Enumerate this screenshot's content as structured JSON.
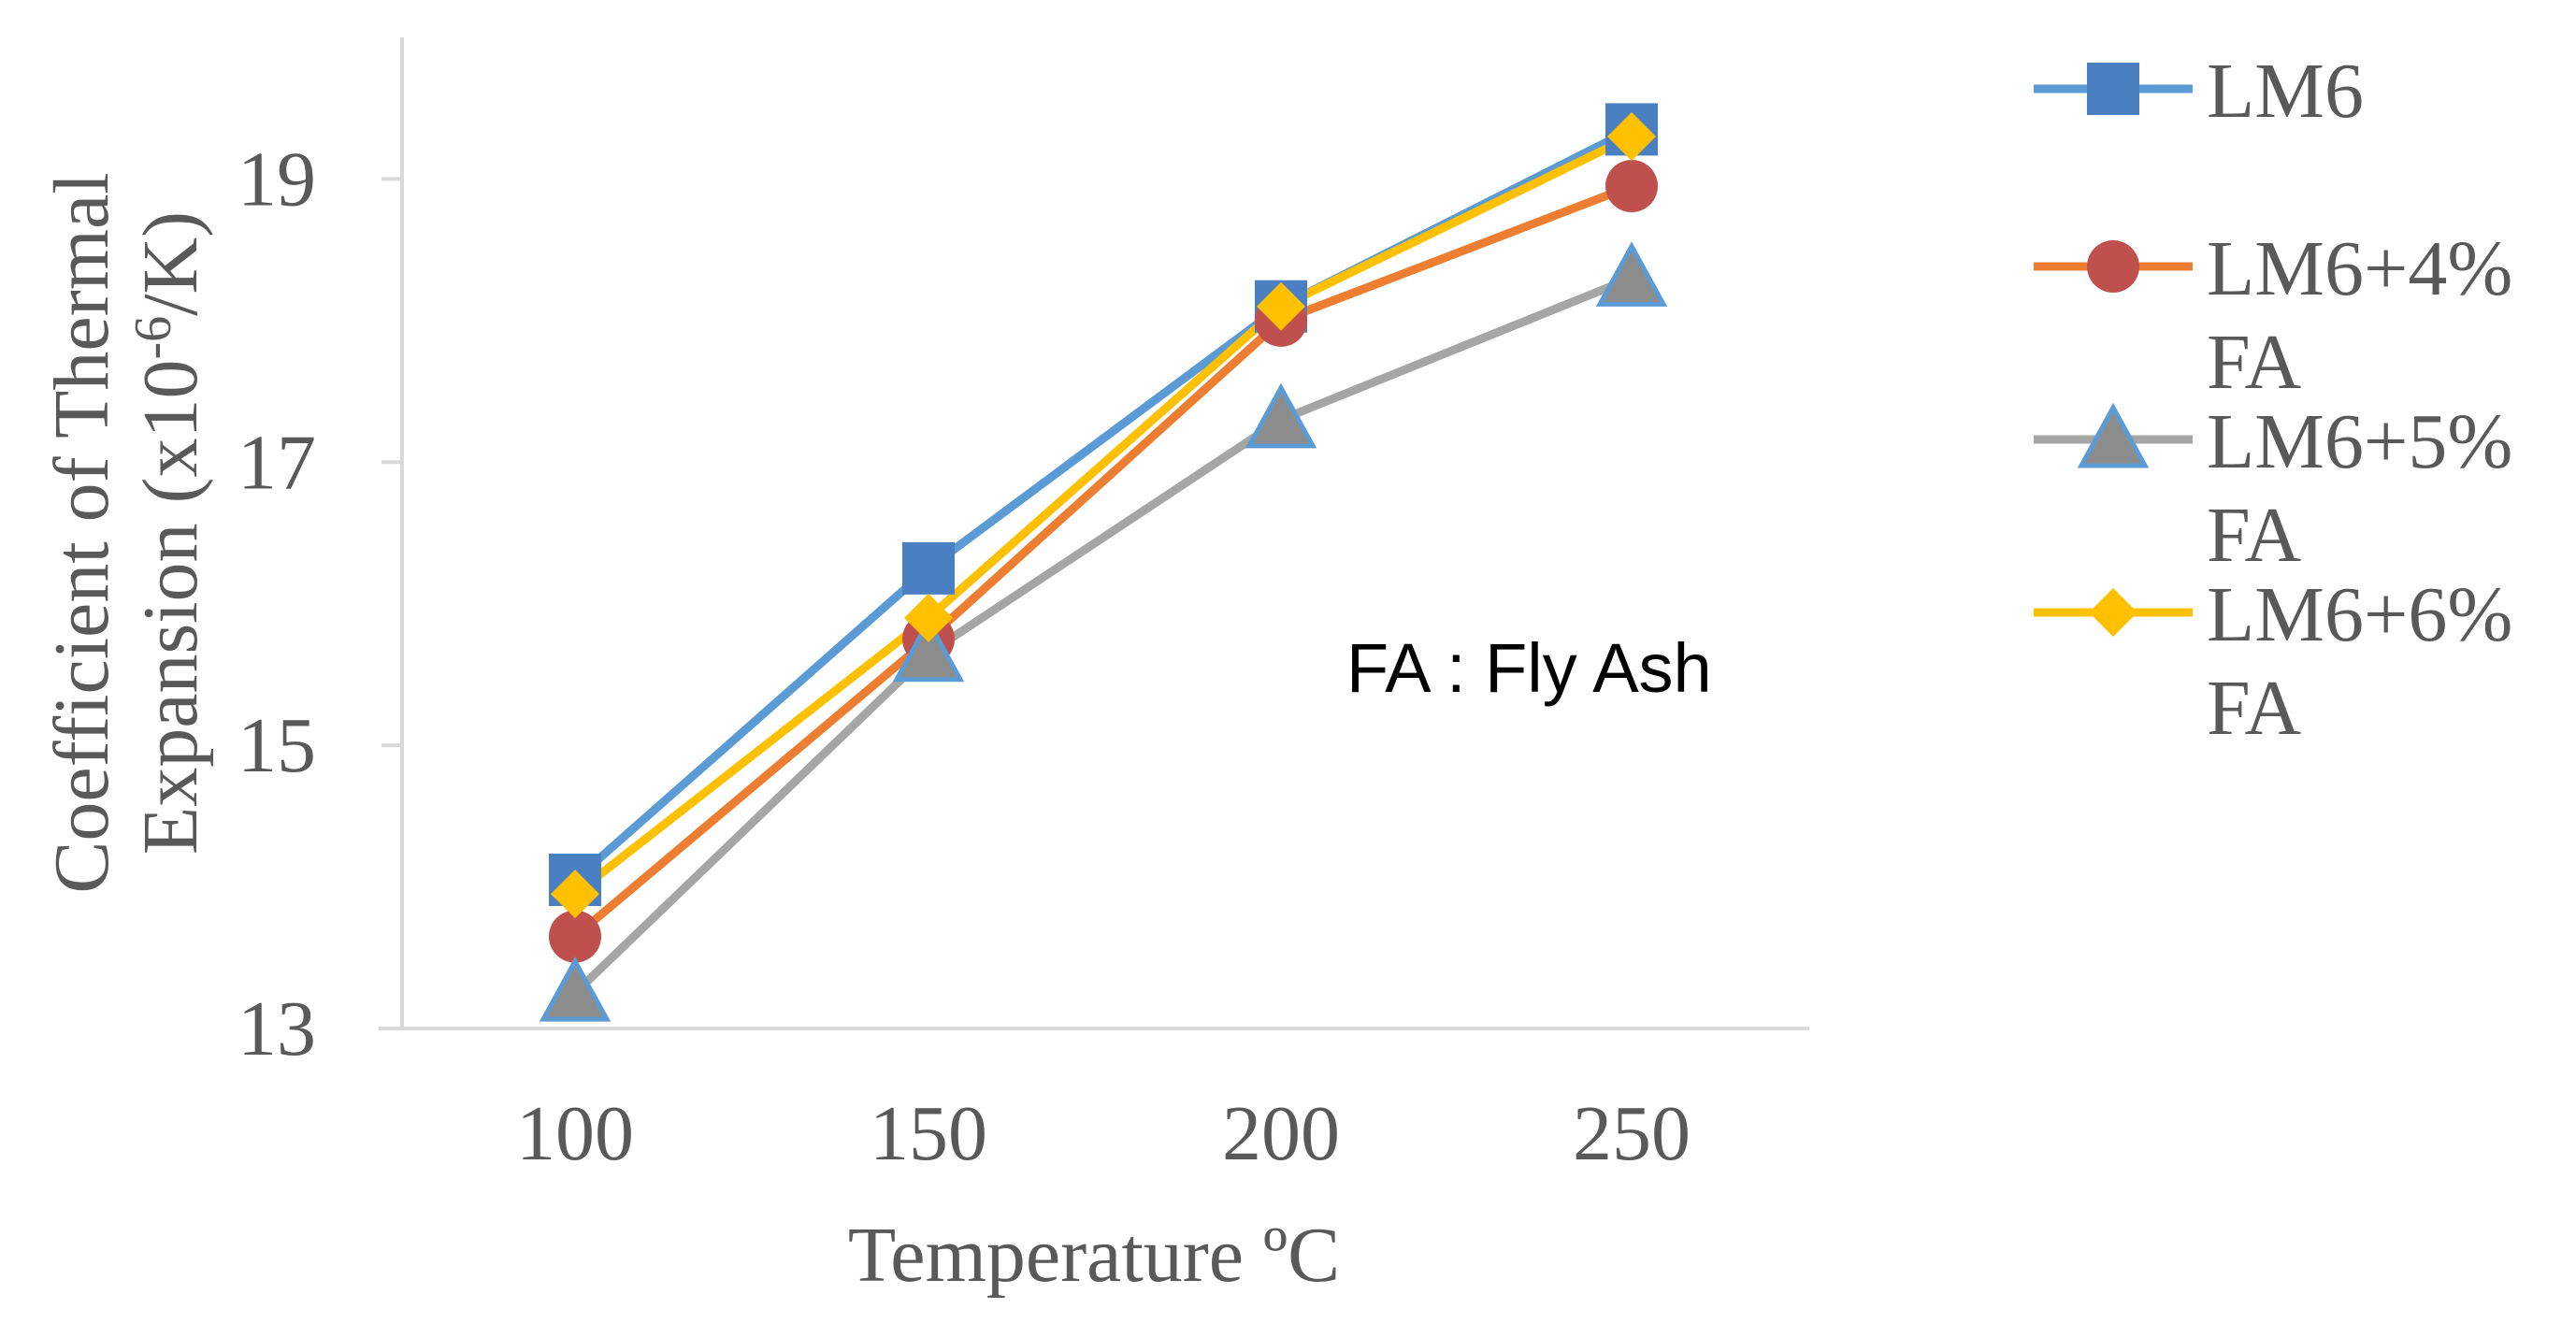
{
  "chart_data": {
    "type": "line",
    "x": [
      100,
      150,
      200,
      250
    ],
    "xlabel": "Temperature ºC",
    "ylabel": {
      "line1": "Coefficient of Thermal",
      "line2_prefix": "Expansion (x10",
      "line2_sup": "-6",
      "line2_suffix": "/K)"
    },
    "ylim": [
      13,
      20
    ],
    "yticks": [
      13,
      15,
      17,
      19
    ],
    "grid": false,
    "legend_position": "right",
    "annotation": "FA : Fly Ash",
    "series": [
      {
        "name": {
          "line1": "LM6",
          "line2": ""
        },
        "values": [
          14.05,
          16.25,
          18.1,
          19.35
        ],
        "color": "#4a7fc1",
        "line_color": "#5b9bd5",
        "marker": "square"
      },
      {
        "name": {
          "line1": "LM6+4%",
          "line2": "FA"
        },
        "values": [
          13.65,
          15.75,
          18.0,
          18.95
        ],
        "color": "#c0504d",
        "line_color": "#ed7d31",
        "marker": "circle"
      },
      {
        "name": {
          "line1": "LM6+5%",
          "line2": "FA"
        },
        "values": [
          13.25,
          15.65,
          17.3,
          18.3
        ],
        "color": "#8c8c8c",
        "line_color": "#a5a5a5",
        "marker": "triangle"
      },
      {
        "name": {
          "line1": "LM6+6%",
          "line2": "FA"
        },
        "values": [
          13.95,
          15.9,
          18.1,
          19.3
        ],
        "color": "#ffc000",
        "line_color": "#ffc000",
        "marker": "diamond"
      }
    ]
  }
}
